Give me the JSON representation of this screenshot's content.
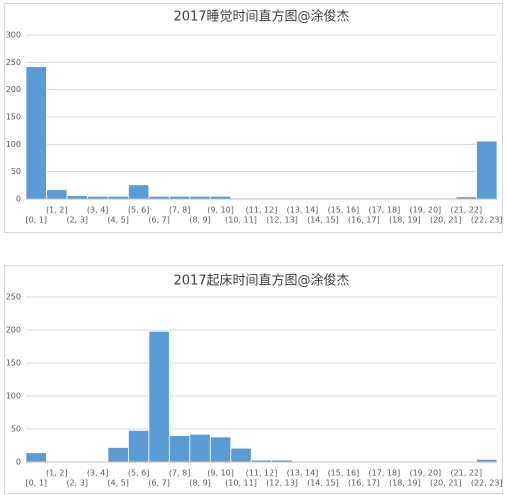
{
  "chart_data": [
    {
      "type": "bar",
      "title": "2017睡觉时间直方图@涂俊杰",
      "categories": [
        "[0, 1]",
        "(1, 2]",
        "(2, 3]",
        "(3, 4]",
        "(4, 5]",
        "(5, 6]",
        "(6, 7]",
        "(7, 8]",
        "(8, 9]",
        "(9, 10]",
        "(10, 11]",
        "(11, 12]",
        "(12, 13]",
        "(13, 14]",
        "(14, 15]",
        "(15, 16]",
        "(16, 17]",
        "(17, 18]",
        "(18, 19]",
        "(19, 20]",
        "(20, 21]",
        "(21, 22]",
        "(22, 23]"
      ],
      "values": [
        242,
        17,
        6,
        5,
        5,
        26,
        5,
        5,
        5,
        5,
        0,
        0,
        0,
        0,
        0,
        0,
        0,
        0,
        0,
        0,
        0,
        4,
        106
      ],
      "color": "#5b9bd5",
      "ylim": [
        0,
        300
      ],
      "yticks": [
        0,
        50,
        100,
        150,
        200,
        250,
        300
      ],
      "grid": true
    },
    {
      "type": "bar",
      "title": "2017起床时间直方图@涂俊杰",
      "categories": [
        "[0, 1]",
        "(1, 2]",
        "(2, 3]",
        "(3, 4]",
        "(4, 5]",
        "(5, 6]",
        "(6, 7]",
        "(7, 8]",
        "(8, 9]",
        "(9, 10]",
        "(10, 11]",
        "(11, 12]",
        "(12, 13]",
        "(13, 14]",
        "(14, 15]",
        "(15, 16]",
        "(16, 17]",
        "(17, 18]",
        "(18, 19]",
        "(19, 20]",
        "(20, 21]",
        "(21, 22]",
        "(22, 23]"
      ],
      "values": [
        14,
        0,
        0,
        0,
        22,
        48,
        198,
        40,
        42,
        38,
        21,
        3,
        3,
        0,
        0,
        0,
        0,
        0,
        0,
        0,
        0,
        0,
        4
      ],
      "color": "#5b9bd5",
      "ylim": [
        0,
        250
      ],
      "yticks": [
        0,
        50,
        100,
        150,
        200,
        250
      ],
      "grid": true
    }
  ]
}
